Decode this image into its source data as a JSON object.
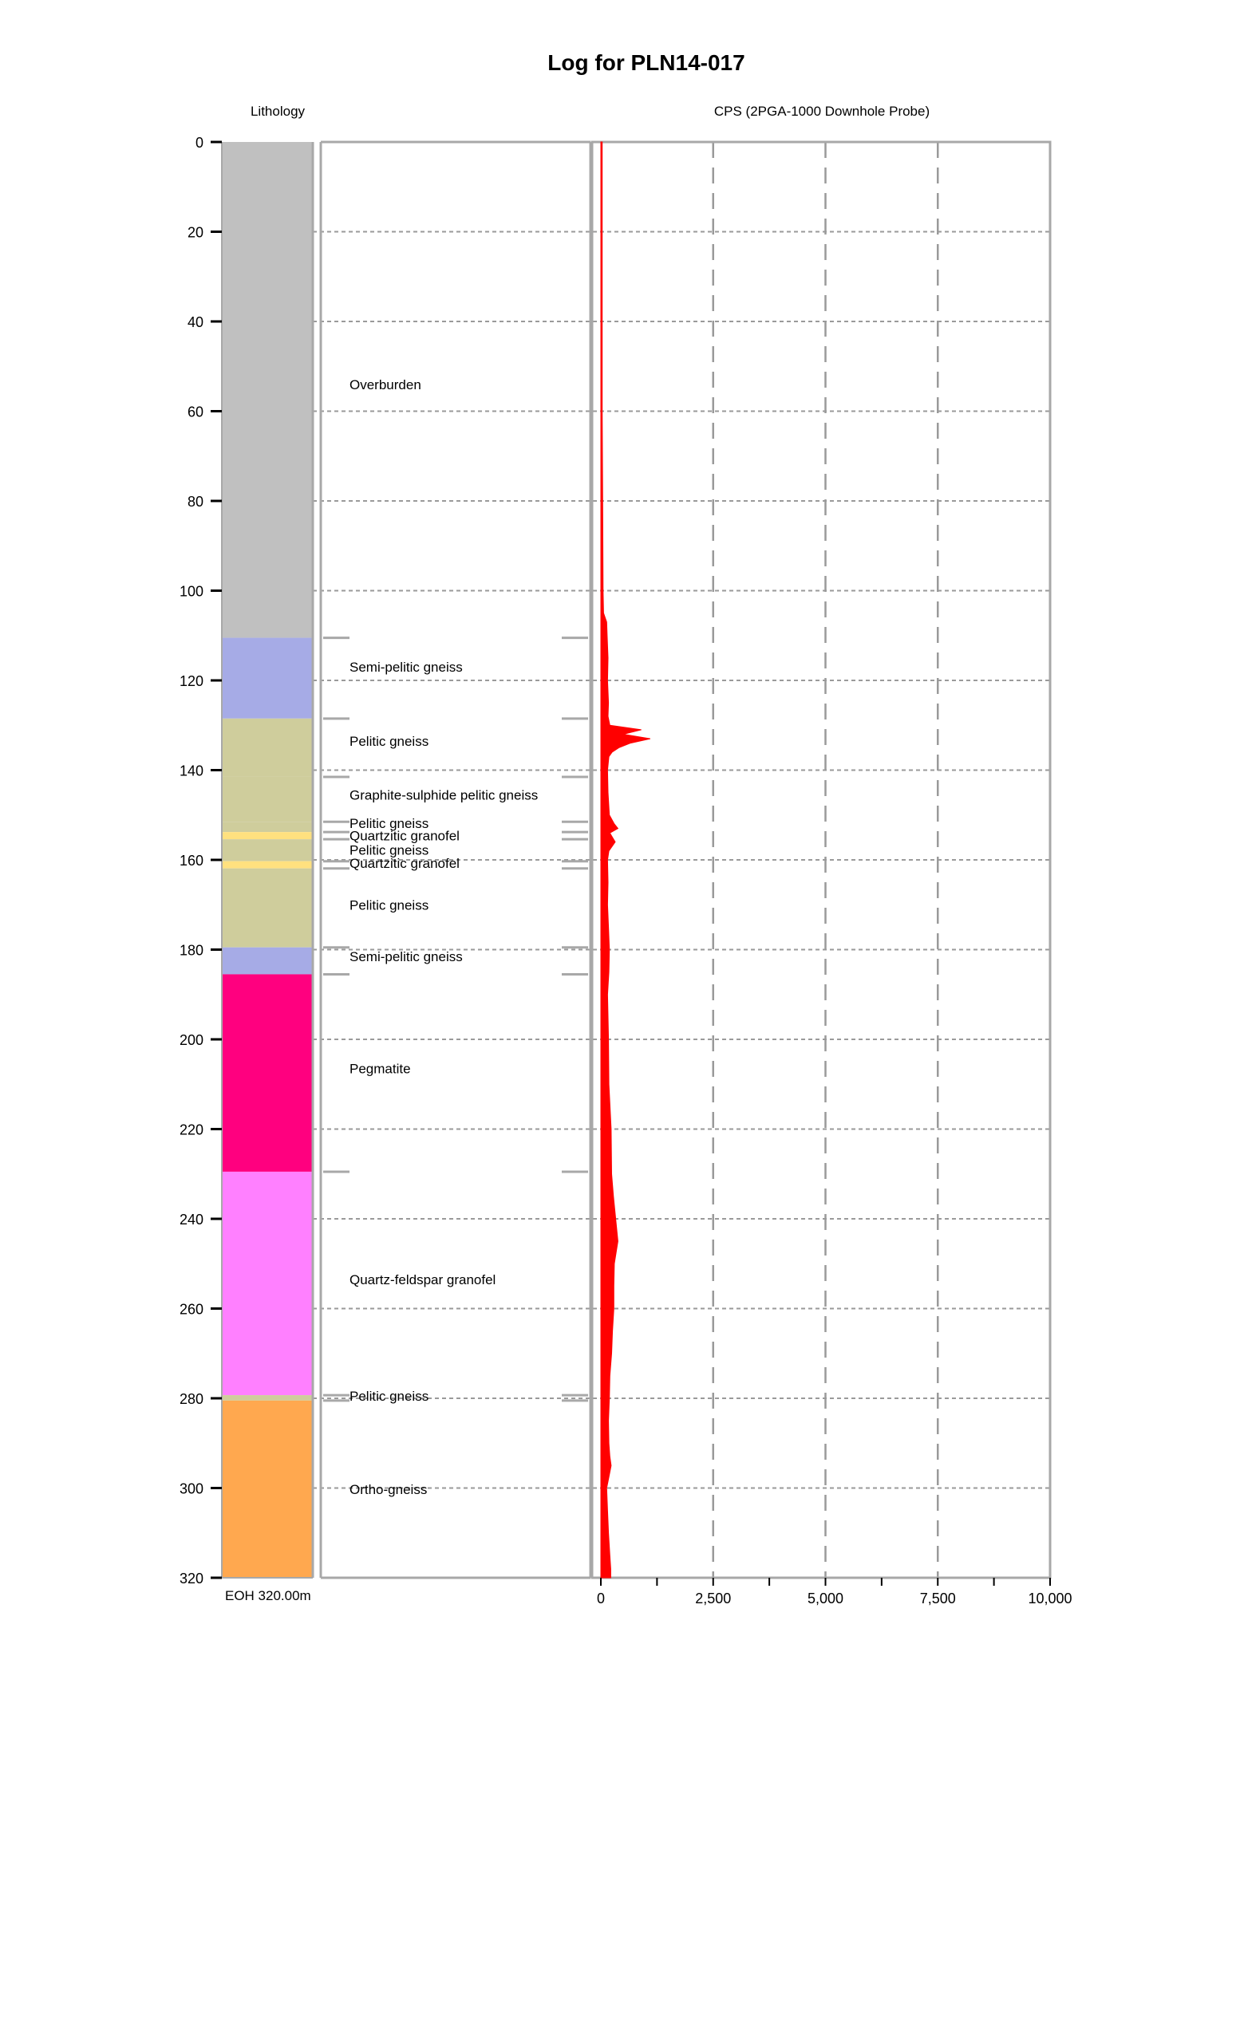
{
  "chart_data": {
    "type": "well-log",
    "title": "Log for PLN14-017",
    "lithology_header": "Lithology",
    "cps_header": "CPS (2PGA-1000 Downhole Probe)",
    "depth_ticks": [
      0,
      20,
      40,
      60,
      80,
      100,
      120,
      140,
      160,
      180,
      200,
      220,
      240,
      260,
      280,
      300,
      320
    ],
    "depth_range": [
      0,
      320
    ],
    "cps_ticks": [
      {
        "value": 0,
        "label": "0"
      },
      {
        "value": 2500,
        "label": "2,500"
      },
      {
        "value": 5000,
        "label": "5,000"
      },
      {
        "value": 7500,
        "label": "7,500"
      },
      {
        "value": 10000,
        "label": "10,000"
      }
    ],
    "cps_range": [
      0,
      10000
    ],
    "grid": true,
    "eoh_label": "EOH  320.00m",
    "units": [
      {
        "from": 0,
        "to": 110.5,
        "color": "#c0c0c0",
        "label": "Overburden",
        "label_depth": 54
      },
      {
        "from": 110.5,
        "to": 128.5,
        "color": "#a6abe6",
        "label": "Semi-pelitic gneiss",
        "label_depth": 117
      },
      {
        "from": 128.5,
        "to": 141.5,
        "color": "#cfcd9c",
        "label": "Pelitic gneiss",
        "label_depth": 133.5
      },
      {
        "from": 141.5,
        "to": 151.5,
        "color": "#cfcd9c",
        "label": "Graphite-sulphide pelitic gneiss",
        "label_depth": 145.5
      },
      {
        "from": 151.5,
        "to": 153.8,
        "color": "#cfcd9c",
        "label": "Pelitic gneiss",
        "label_depth": 151.8
      },
      {
        "from": 153.8,
        "to": 155.4,
        "color": "#ffe17f",
        "label": "Quartzitic granofel",
        "label_depth": 154.6
      },
      {
        "from": 155.4,
        "to": 160.3,
        "color": "#cfcd9c",
        "label": "Pelitic gneiss",
        "label_depth": 157.8
      },
      {
        "from": 160.3,
        "to": 161.9,
        "color": "#ffe17f",
        "label": "Quartzitic granofel",
        "label_depth": 160.7
      },
      {
        "from": 161.9,
        "to": 179.5,
        "color": "#cfcd9c",
        "label": "Pelitic gneiss",
        "label_depth": 170
      },
      {
        "from": 179.5,
        "to": 185.5,
        "color": "#a6abe6",
        "label": "Semi-pelitic gneiss",
        "label_depth": 181.5
      },
      {
        "from": 185.5,
        "to": 229.5,
        "color": "#ff007f",
        "label": "Pegmatite",
        "label_depth": 206.5
      },
      {
        "from": 229.5,
        "to": 279.3,
        "color": "#ff80ff",
        "label": "Quartz-feldspar granofel",
        "label_depth": 253.5
      },
      {
        "from": 279.3,
        "to": 280.5,
        "color": "#cfcd9c",
        "label": "Pelitic gneiss",
        "label_depth": 279.5
      },
      {
        "from": 280.5,
        "to": 320,
        "color": "#ffa84f",
        "label": "Ortho-gneiss",
        "label_depth": 300.3
      }
    ],
    "cps_series": {
      "color": "#ff0000",
      "points": [
        [
          0,
          30
        ],
        [
          20,
          30
        ],
        [
          40,
          30
        ],
        [
          60,
          30
        ],
        [
          80,
          40
        ],
        [
          100,
          50
        ],
        [
          105,
          60
        ],
        [
          107,
          130
        ],
        [
          110,
          140
        ],
        [
          115,
          160
        ],
        [
          120,
          150
        ],
        [
          125,
          170
        ],
        [
          128,
          160
        ],
        [
          130,
          200
        ],
        [
          131,
          900
        ],
        [
          132,
          500
        ],
        [
          133,
          1100
        ],
        [
          134,
          650
        ],
        [
          135,
          400
        ],
        [
          136,
          250
        ],
        [
          137,
          180
        ],
        [
          140,
          150
        ],
        [
          145,
          160
        ],
        [
          150,
          190
        ],
        [
          152,
          300
        ],
        [
          153,
          380
        ],
        [
          154,
          200
        ],
        [
          155,
          260
        ],
        [
          156,
          320
        ],
        [
          157,
          250
        ],
        [
          158,
          180
        ],
        [
          160,
          150
        ],
        [
          165,
          160
        ],
        [
          170,
          150
        ],
        [
          175,
          170
        ],
        [
          180,
          190
        ],
        [
          185,
          180
        ],
        [
          190,
          150
        ],
        [
          200,
          170
        ],
        [
          210,
          180
        ],
        [
          220,
          230
        ],
        [
          230,
          240
        ],
        [
          235,
          280
        ],
        [
          240,
          330
        ],
        [
          245,
          380
        ],
        [
          250,
          300
        ],
        [
          255,
          290
        ],
        [
          260,
          290
        ],
        [
          265,
          260
        ],
        [
          270,
          240
        ],
        [
          275,
          200
        ],
        [
          280,
          190
        ],
        [
          285,
          170
        ],
        [
          290,
          180
        ],
        [
          293,
          200
        ],
        [
          295,
          230
        ],
        [
          298,
          170
        ],
        [
          300,
          130
        ],
        [
          305,
          150
        ],
        [
          310,
          170
        ],
        [
          315,
          200
        ],
        [
          318,
          220
        ],
        [
          320,
          220
        ]
      ]
    }
  }
}
